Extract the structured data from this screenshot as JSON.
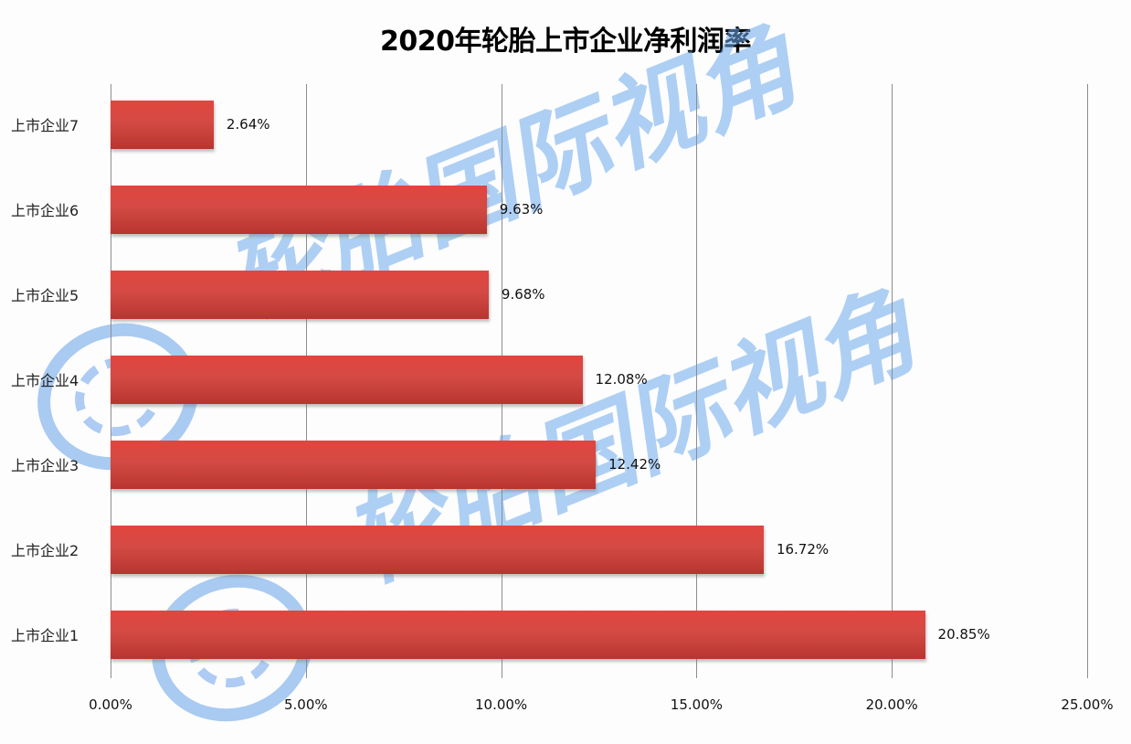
{
  "title": "2020年轮胎上市企业净利润率",
  "watermark": "轮胎国际视角",
  "colors": {
    "bar": "#d44a44",
    "grid": "#8a8d94",
    "watermark": "#6eaaeb"
  },
  "xaxis": {
    "ticks": [
      "0.00%",
      "5.00%",
      "10.00%",
      "15.00%",
      "20.00%",
      "25.00%"
    ]
  },
  "bars": [
    {
      "label": "上市企业7",
      "value_label": "2.64%"
    },
    {
      "label": "上市企业6",
      "value_label": "9.63%"
    },
    {
      "label": "上市企业5",
      "value_label": "9.68%"
    },
    {
      "label": "上市企业4",
      "value_label": "12.08%"
    },
    {
      "label": "上市企业3",
      "value_label": "12.42%"
    },
    {
      "label": "上市企业2",
      "value_label": "16.72%"
    },
    {
      "label": "上市企业1",
      "value_label": "20.85%"
    }
  ],
  "chart_data": {
    "type": "bar",
    "orientation": "horizontal",
    "title": "2020年轮胎上市企业净利润率",
    "categories": [
      "上市企业1",
      "上市企业2",
      "上市企业3",
      "上市企业4",
      "上市企业5",
      "上市企业6",
      "上市企业7"
    ],
    "values": [
      20.85,
      16.72,
      12.42,
      12.08,
      9.68,
      9.63,
      2.64
    ],
    "value_unit": "%",
    "xlabel": "",
    "ylabel": "",
    "xlim": [
      0,
      25
    ],
    "xticks": [
      "0.00%",
      "5.00%",
      "10.00%",
      "15.00%",
      "20.00%",
      "25.00%"
    ],
    "grid": "vertical",
    "legend": "none",
    "data_labels": true
  }
}
